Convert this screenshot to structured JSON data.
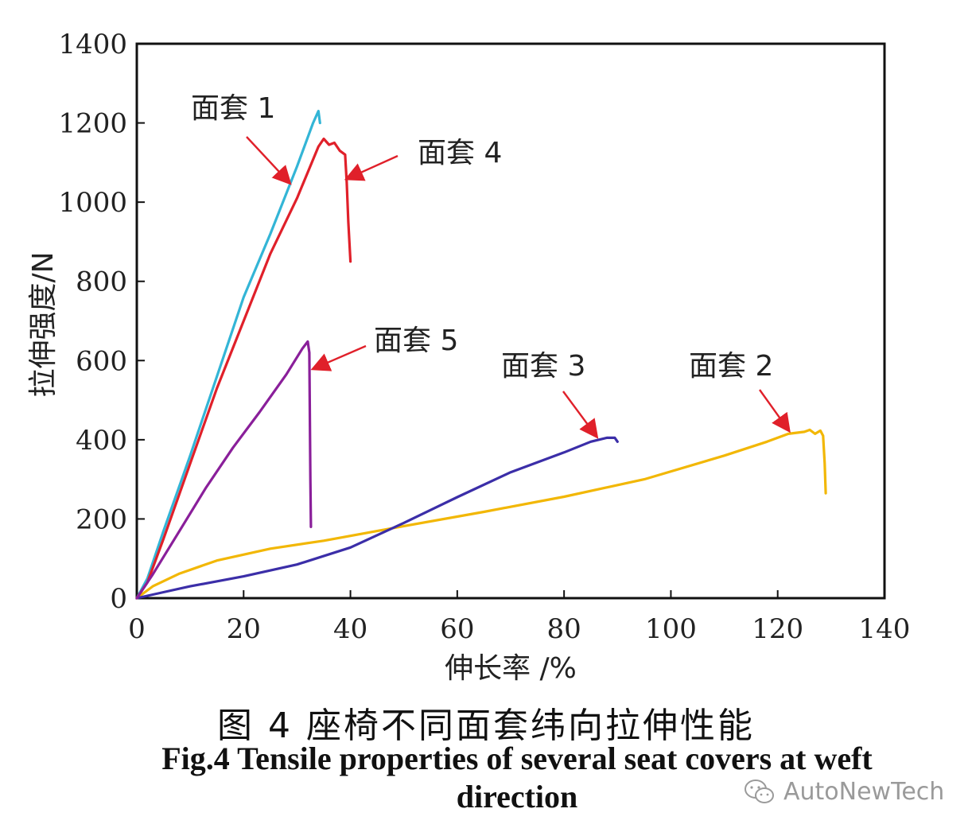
{
  "chart_data": {
    "type": "line",
    "title": "",
    "xlabel": "伸长率 /%",
    "ylabel": "拉伸强度/N",
    "xlim": [
      0,
      140
    ],
    "ylim": [
      0,
      1400
    ],
    "xticks": [
      0,
      20,
      40,
      60,
      80,
      100,
      120,
      140
    ],
    "yticks": [
      0,
      200,
      400,
      600,
      800,
      1000,
      1200,
      1400
    ],
    "grid": false,
    "legend": "none (inline annotations with arrows)",
    "series": [
      {
        "name": "面套 1",
        "color": "#33b5d6",
        "points": [
          [
            0,
            0
          ],
          [
            2,
            50
          ],
          [
            5,
            170
          ],
          [
            10,
            360
          ],
          [
            15,
            560
          ],
          [
            20,
            760
          ],
          [
            25,
            920
          ],
          [
            30,
            1090
          ],
          [
            33,
            1200
          ],
          [
            34,
            1230
          ],
          [
            34.3,
            1200
          ]
        ]
      },
      {
        "name": "面套 2",
        "color": "#f2b705",
        "points": [
          [
            0,
            0
          ],
          [
            3,
            30
          ],
          [
            8,
            62
          ],
          [
            15,
            95
          ],
          [
            25,
            125
          ],
          [
            35,
            145
          ],
          [
            50,
            182
          ],
          [
            65,
            218
          ],
          [
            80,
            256
          ],
          [
            95,
            300
          ],
          [
            110,
            360
          ],
          [
            118,
            395
          ],
          [
            122,
            415
          ],
          [
            125,
            420
          ],
          [
            126,
            425
          ],
          [
            127,
            415
          ],
          [
            128,
            423
          ],
          [
            128.5,
            410
          ],
          [
            128.8,
            340
          ],
          [
            129,
            265
          ]
        ]
      },
      {
        "name": "面套 3",
        "color": "#3b2ea8",
        "points": [
          [
            0,
            0
          ],
          [
            5,
            15
          ],
          [
            10,
            30
          ],
          [
            20,
            55
          ],
          [
            30,
            85
          ],
          [
            40,
            128
          ],
          [
            50,
            190
          ],
          [
            60,
            255
          ],
          [
            70,
            318
          ],
          [
            80,
            368
          ],
          [
            85,
            395
          ],
          [
            88,
            405
          ],
          [
            89.5,
            405
          ],
          [
            90,
            395
          ]
        ]
      },
      {
        "name": "面套 4",
        "color": "#e0202a",
        "points": [
          [
            0,
            0
          ],
          [
            2,
            40
          ],
          [
            5,
            150
          ],
          [
            10,
            340
          ],
          [
            15,
            530
          ],
          [
            20,
            700
          ],
          [
            25,
            870
          ],
          [
            30,
            1010
          ],
          [
            34,
            1140
          ],
          [
            35,
            1160
          ],
          [
            36,
            1145
          ],
          [
            37,
            1150
          ],
          [
            38,
            1130
          ],
          [
            39,
            1120
          ],
          [
            39.3,
            1050
          ],
          [
            39.6,
            950
          ],
          [
            40,
            850
          ]
        ]
      },
      {
        "name": "面套 5",
        "color": "#8a1f9a",
        "points": [
          [
            0,
            0
          ],
          [
            3,
            60
          ],
          [
            8,
            170
          ],
          [
            13,
            280
          ],
          [
            18,
            380
          ],
          [
            23,
            470
          ],
          [
            28,
            565
          ],
          [
            31,
            630
          ],
          [
            32,
            648
          ],
          [
            32.3,
            620
          ],
          [
            32.5,
            300
          ],
          [
            32.6,
            180
          ]
        ]
      }
    ],
    "annotations": [
      {
        "text": "面套 1",
        "arrow_to": [
          28.5,
          1050
        ]
      },
      {
        "text": "面套 4",
        "arrow_to": [
          39.5,
          1060
        ]
      },
      {
        "text": "面套 5",
        "arrow_to": [
          33.2,
          580
        ]
      },
      {
        "text": "面套 3",
        "arrow_to": [
          86,
          410
        ]
      },
      {
        "text": "面套 2",
        "arrow_to": [
          122,
          425
        ]
      }
    ]
  },
  "caption": {
    "chinese": "图 4  座椅不同面套纬向拉伸性能",
    "english": "Fig.4  Tensile properties of several seat covers at weft direction"
  },
  "watermark": {
    "text": "AutoNewTech",
    "icon": "wechat-icon",
    "color": "#9a9a9a"
  },
  "colors": {
    "arrow": "#e0202a",
    "axis": "#111111"
  }
}
